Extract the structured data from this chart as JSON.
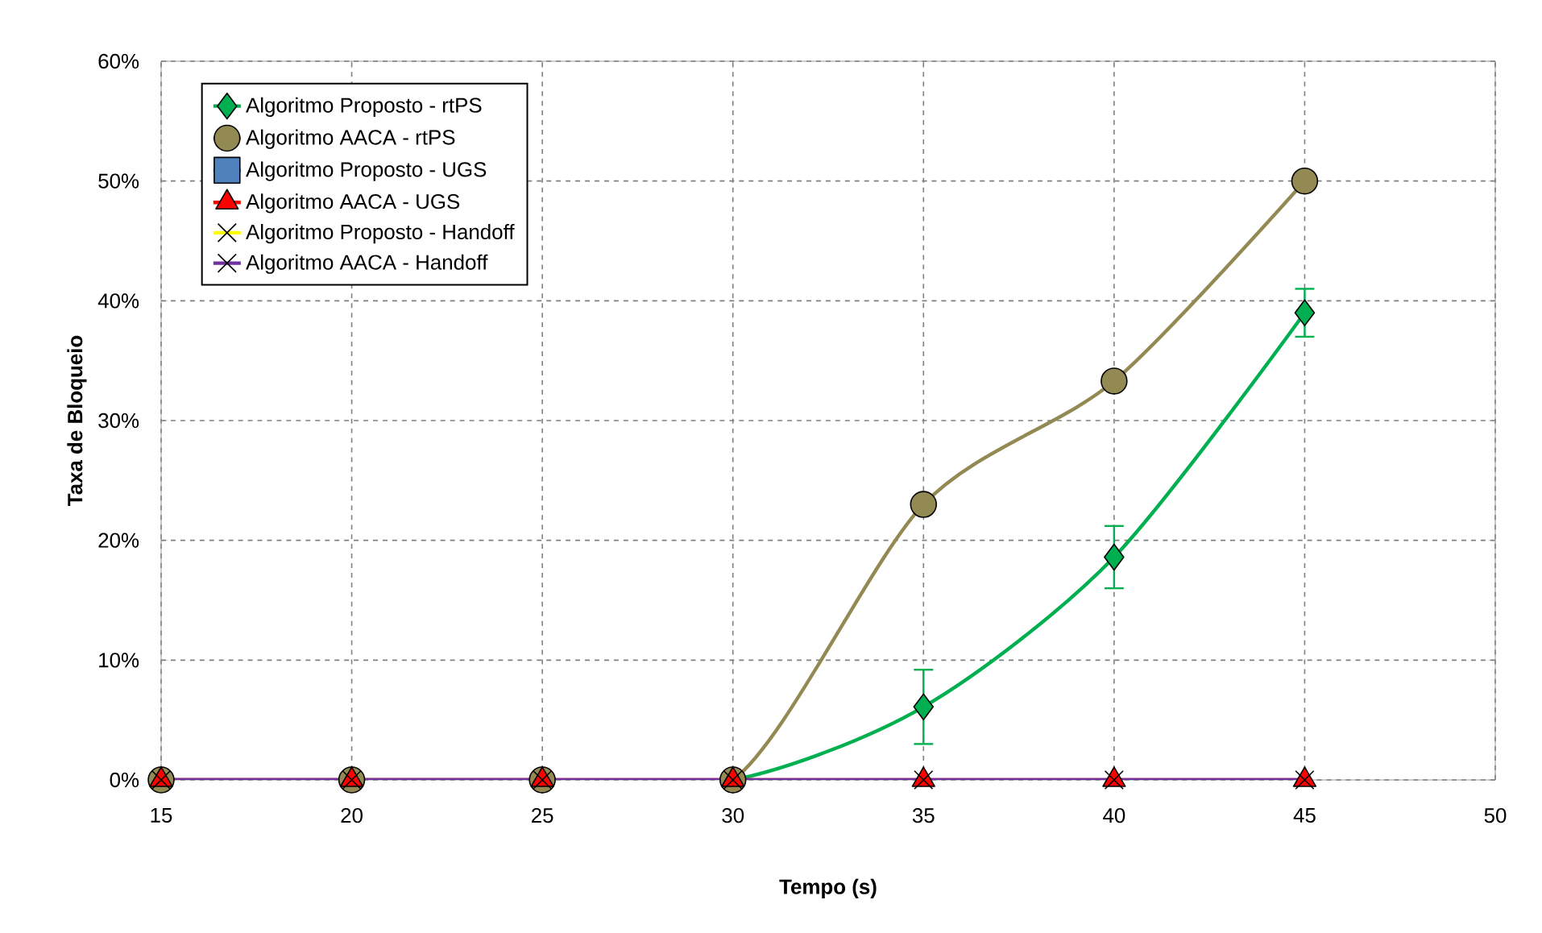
{
  "chart_data": {
    "type": "line",
    "xlabel": "Tempo (s)",
    "ylabel": "Taxa de Bloqueio",
    "x": [
      15,
      20,
      25,
      30,
      35,
      40,
      45
    ],
    "xlim": [
      15,
      50
    ],
    "xticks": [
      15,
      20,
      25,
      30,
      35,
      40,
      45,
      50
    ],
    "ylim": [
      0,
      60
    ],
    "yticks": [
      {
        "value": 0,
        "label": "0%"
      },
      {
        "value": 10,
        "label": "10%"
      },
      {
        "value": 20,
        "label": "20%"
      },
      {
        "value": 30,
        "label": "30%"
      },
      {
        "value": 40,
        "label": "40%"
      },
      {
        "value": 50,
        "label": "50%"
      },
      {
        "value": 60,
        "label": "60%"
      }
    ],
    "grid": true,
    "legend": "top left",
    "line_style": "solid",
    "series": [
      {
        "name": "Algoritmo Proposto  - rtPS",
        "color": "#00b050",
        "marker": "diamond",
        "values": [
          null,
          null,
          0,
          0,
          6.1,
          18.6,
          39
        ],
        "errors": [
          null,
          null,
          null,
          null,
          3.1,
          2.6,
          2
        ]
      },
      {
        "name": "Algoritmo AACA  - rtPS",
        "color": "#938953",
        "marker": "circle",
        "values": [
          0,
          0,
          0,
          0,
          23,
          33.3,
          50
        ]
      },
      {
        "name": "Algoritmo Proposto  - UGS",
        "color": "#4f81bd",
        "marker": "square",
        "values": [
          null,
          null,
          null,
          null,
          null,
          null,
          null
        ]
      },
      {
        "name": "Algoritmo AACA  - UGS",
        "color": "#ff0000",
        "marker": "triangle",
        "values": [
          0,
          0,
          0,
          0,
          0,
          0,
          0
        ]
      },
      {
        "name": "Algoritmo Proposto  - Handoff",
        "color": "#ffff00",
        "marker": "cross",
        "values": [
          null,
          null,
          null,
          null,
          null,
          null,
          null
        ]
      },
      {
        "name": "Algoritmo AACA  - Handoff",
        "color": "#7030a0",
        "marker": "cross",
        "values": [
          0,
          0,
          0,
          0,
          0,
          0,
          0
        ]
      }
    ]
  }
}
